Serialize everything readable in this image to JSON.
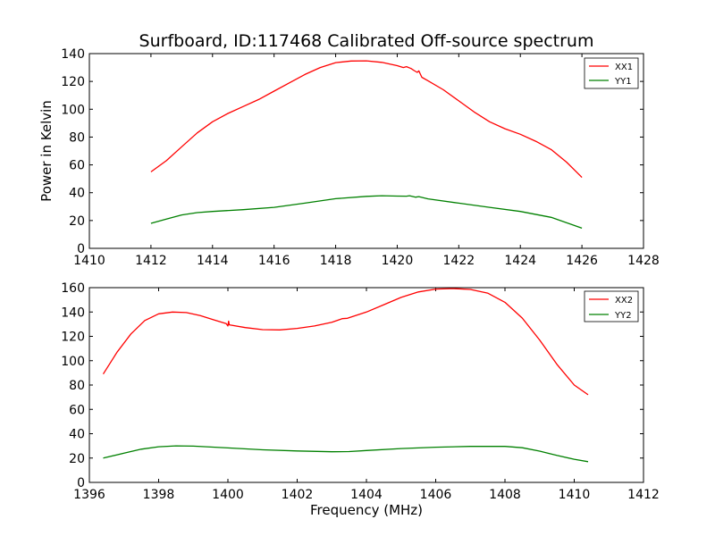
{
  "chart_data": [
    {
      "type": "line",
      "title": "Surfboard, ID:117468 Calibrated Off-source spectrum",
      "xlabel": "",
      "ylabel": "Power in Kelvin",
      "xlim": [
        1410,
        1428
      ],
      "ylim": [
        0,
        140
      ],
      "xticks": [
        "1410",
        "1412",
        "1414",
        "1416",
        "1418",
        "1420",
        "1422",
        "1424",
        "1426",
        "1428"
      ],
      "yticks": [
        "0",
        "20",
        "40",
        "60",
        "80",
        "100",
        "120",
        "140"
      ],
      "grid": false,
      "legend_position": "top-right",
      "series": [
        {
          "name": "XX1",
          "color": "#ff0000",
          "points": [
            [
              1412.0,
              55
            ],
            [
              1412.5,
              63
            ],
            [
              1413.0,
              73
            ],
            [
              1413.5,
              83
            ],
            [
              1414.0,
              91
            ],
            [
              1414.5,
              97
            ],
            [
              1415.0,
              102
            ],
            [
              1415.5,
              107
            ],
            [
              1416.0,
              113
            ],
            [
              1416.5,
              119
            ],
            [
              1417.0,
              125
            ],
            [
              1417.5,
              130
            ],
            [
              1418.0,
              133.5
            ],
            [
              1418.5,
              134.7
            ],
            [
              1419.0,
              134.8
            ],
            [
              1419.5,
              133.7
            ],
            [
              1420.0,
              131.3
            ],
            [
              1420.2,
              130.0
            ],
            [
              1420.3,
              130.6
            ],
            [
              1420.45,
              129.3
            ],
            [
              1420.55,
              127.8
            ],
            [
              1420.65,
              126.5
            ],
            [
              1420.7,
              127.6
            ],
            [
              1420.8,
              123.0
            ],
            [
              1421.0,
              120.5
            ],
            [
              1421.5,
              114
            ],
            [
              1422.0,
              106
            ],
            [
              1422.5,
              98
            ],
            [
              1423.0,
              91
            ],
            [
              1423.5,
              86
            ],
            [
              1424.0,
              82
            ],
            [
              1424.5,
              77
            ],
            [
              1425.0,
              71
            ],
            [
              1425.5,
              62
            ],
            [
              1426.0,
              51
            ]
          ]
        },
        {
          "name": "YY1",
          "color": "#008000",
          "points": [
            [
              1412.0,
              18
            ],
            [
              1412.5,
              21
            ],
            [
              1413.0,
              24
            ],
            [
              1413.5,
              25.7
            ],
            [
              1414.0,
              26.5
            ],
            [
              1415.0,
              27.8
            ],
            [
              1416.0,
              29.5
            ],
            [
              1417.0,
              32.5
            ],
            [
              1418.0,
              35.7
            ],
            [
              1419.0,
              37.4
            ],
            [
              1419.5,
              37.8
            ],
            [
              1420.0,
              37.6
            ],
            [
              1420.3,
              37.5
            ],
            [
              1420.4,
              37.8
            ],
            [
              1420.6,
              36.8
            ],
            [
              1420.7,
              37.2
            ],
            [
              1421.0,
              35.6
            ],
            [
              1422.0,
              32.5
            ],
            [
              1423.0,
              29.5
            ],
            [
              1424.0,
              26.5
            ],
            [
              1425.0,
              22.3
            ],
            [
              1426.0,
              14.5
            ]
          ]
        }
      ]
    },
    {
      "type": "line",
      "title": "",
      "xlabel": "Frequency (MHz)",
      "ylabel": "",
      "xlim": [
        1396,
        1412
      ],
      "ylim": [
        0,
        160
      ],
      "xticks": [
        "1396",
        "1398",
        "1400",
        "1402",
        "1404",
        "1406",
        "1408",
        "1410",
        "1412"
      ],
      "yticks": [
        "0",
        "20",
        "40",
        "60",
        "80",
        "100",
        "120",
        "140",
        "160"
      ],
      "grid": false,
      "legend_position": "top-right",
      "series": [
        {
          "name": "XX2",
          "color": "#ff0000",
          "points": [
            [
              1396.4,
              89
            ],
            [
              1396.8,
              107
            ],
            [
              1397.2,
              122
            ],
            [
              1397.6,
              133
            ],
            [
              1398.0,
              138.5
            ],
            [
              1398.4,
              140
            ],
            [
              1398.8,
              139.5
            ],
            [
              1399.2,
              137
            ],
            [
              1399.6,
              133.5
            ],
            [
              1399.95,
              130.5
            ],
            [
              1400.0,
              128.5
            ],
            [
              1400.02,
              132.5
            ],
            [
              1400.04,
              129.5
            ],
            [
              1400.5,
              127.2
            ],
            [
              1401.0,
              125.5
            ],
            [
              1401.5,
              125.3
            ],
            [
              1402.0,
              126.5
            ],
            [
              1402.5,
              128.5
            ],
            [
              1403.0,
              131.5
            ],
            [
              1403.3,
              134.5
            ],
            [
              1403.45,
              134.8
            ],
            [
              1404.0,
              140
            ],
            [
              1404.5,
              146
            ],
            [
              1405.0,
              152
            ],
            [
              1405.5,
              156.5
            ],
            [
              1406.0,
              158.8
            ],
            [
              1406.5,
              159.3
            ],
            [
              1407.0,
              158.5
            ],
            [
              1407.5,
              155.5
            ],
            [
              1408.0,
              148
            ],
            [
              1408.5,
              135
            ],
            [
              1409.0,
              117
            ],
            [
              1409.5,
              97
            ],
            [
              1410.0,
              80
            ],
            [
              1410.4,
              72
            ]
          ]
        },
        {
          "name": "YY2",
          "color": "#008000",
          "points": [
            [
              1396.4,
              20
            ],
            [
              1397.0,
              24
            ],
            [
              1397.5,
              27.3
            ],
            [
              1398.0,
              29.3
            ],
            [
              1398.5,
              30
            ],
            [
              1399.0,
              29.8
            ],
            [
              1400.0,
              28.3
            ],
            [
              1401.0,
              26.8
            ],
            [
              1402.0,
              25.8
            ],
            [
              1403.0,
              25.2
            ],
            [
              1403.5,
              25.3
            ],
            [
              1404.0,
              26.2
            ],
            [
              1405.0,
              27.8
            ],
            [
              1406.0,
              28.9
            ],
            [
              1407.0,
              29.6
            ],
            [
              1408.0,
              29.6
            ],
            [
              1408.5,
              28.5
            ],
            [
              1409.0,
              25.7
            ],
            [
              1409.5,
              22.2
            ],
            [
              1410.0,
              19
            ],
            [
              1410.4,
              17
            ]
          ]
        }
      ]
    }
  ]
}
